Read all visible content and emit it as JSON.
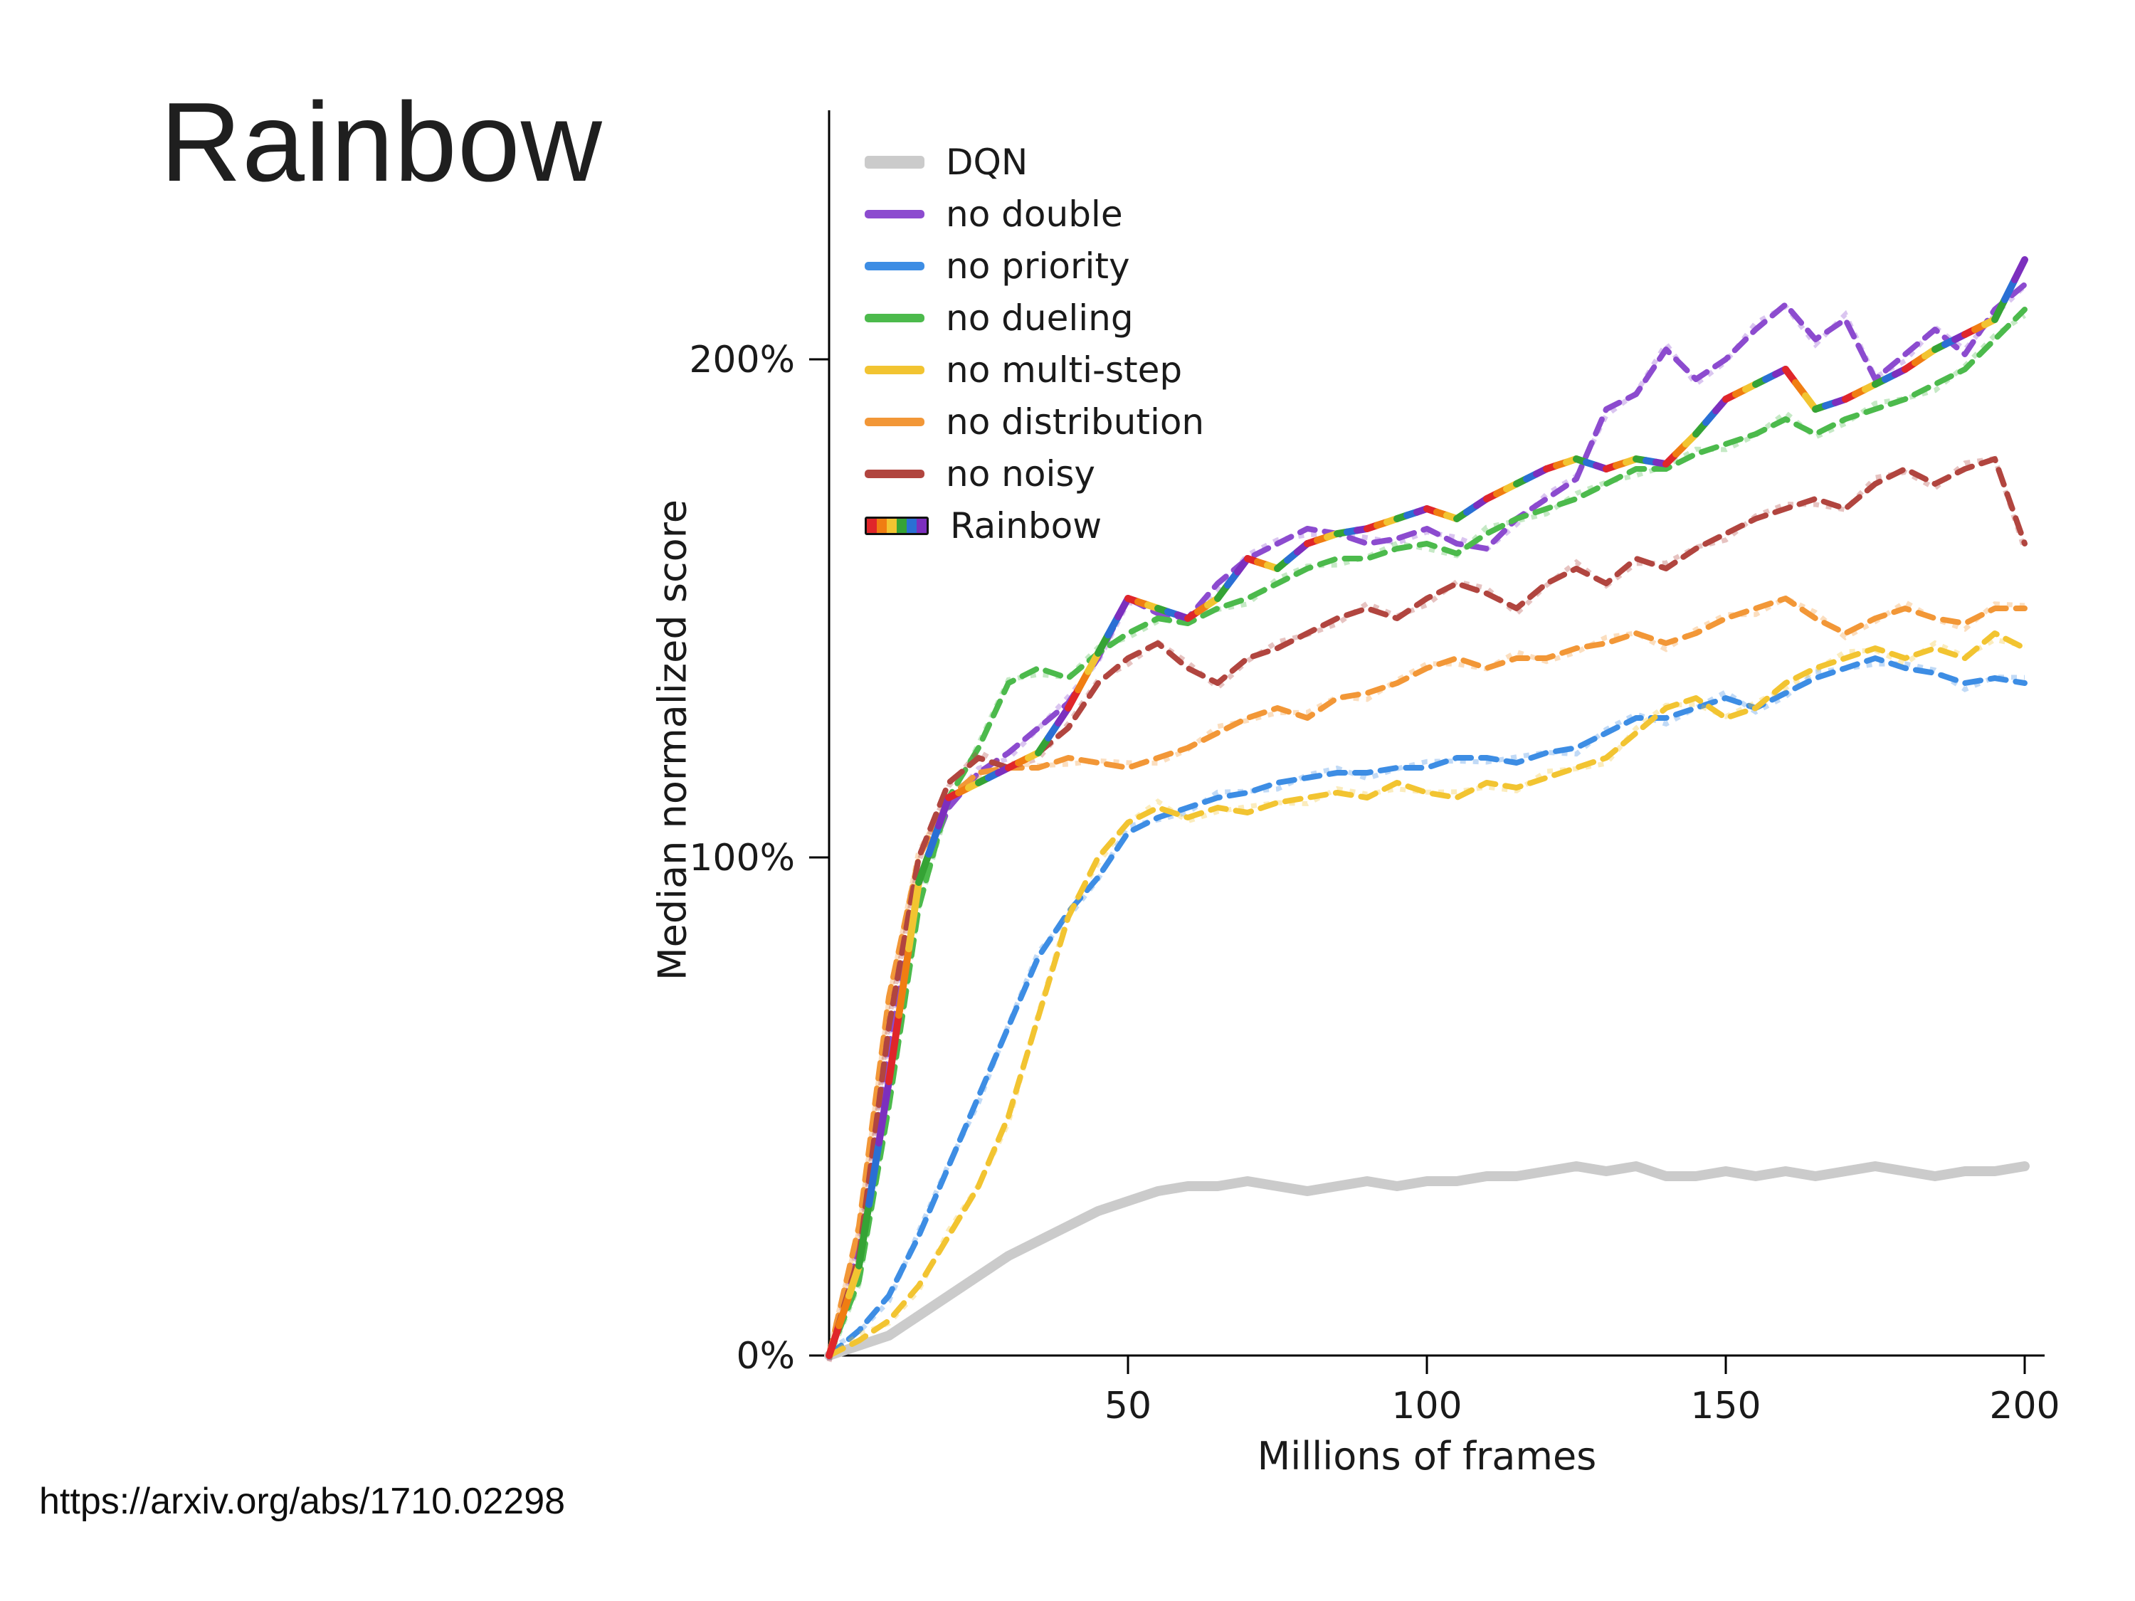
{
  "slide": {
    "title": "Rainbow",
    "url": "https://arxiv.org/abs/1710.02298"
  },
  "chart_data": {
    "type": "line",
    "title": "",
    "xlabel": "Millions of frames",
    "ylabel": "Median normalized score",
    "xlim": [
      0,
      200
    ],
    "ylim": [
      0,
      250
    ],
    "grid": false,
    "legend_position": "upper-left-inside",
    "xticks": [
      50,
      100,
      150,
      200
    ],
    "yticks": [
      {
        "value": 0,
        "label": "0%"
      },
      {
        "value": 100,
        "label": "100%"
      },
      {
        "value": 200,
        "label": "200%"
      }
    ],
    "rainbow_palette": [
      "#e0262a",
      "#f07d12",
      "#f2c431",
      "#35a335",
      "#2a6fd4",
      "#7c2fbe"
    ],
    "x": [
      0,
      5,
      10,
      15,
      20,
      25,
      30,
      35,
      40,
      45,
      50,
      55,
      60,
      65,
      70,
      75,
      80,
      85,
      90,
      95,
      100,
      105,
      110,
      115,
      120,
      125,
      130,
      135,
      140,
      145,
      150,
      155,
      160,
      165,
      170,
      175,
      180,
      185,
      190,
      195,
      200
    ],
    "series": [
      {
        "name": "DQN",
        "color": "#cbcbcb",
        "style": "solid",
        "width": 14,
        "values": [
          0,
          2,
          4,
          8,
          12,
          16,
          20,
          23,
          26,
          29,
          31,
          33,
          34,
          34,
          35,
          34,
          33,
          34,
          35,
          34,
          35,
          35,
          36,
          36,
          37,
          38,
          37,
          38,
          36,
          36,
          37,
          36,
          37,
          36,
          37,
          38,
          37,
          36,
          37,
          37,
          38
        ]
      },
      {
        "name": "no double",
        "color": "#8c4bcf",
        "style": "dashed",
        "width": 8,
        "values": [
          0,
          22,
          62,
          95,
          110,
          117,
          121,
          126,
          131,
          140,
          152,
          149,
          148,
          155,
          160,
          163,
          166,
          165,
          163,
          164,
          166,
          163,
          162,
          168,
          172,
          176,
          190,
          193,
          202,
          196,
          200,
          206,
          211,
          204,
          208,
          196,
          201,
          206,
          201,
          210,
          215
        ]
      },
      {
        "name": "no priority",
        "color": "#3d8de4",
        "style": "dashed",
        "width": 8,
        "values": [
          0,
          5,
          12,
          24,
          38,
          52,
          66,
          80,
          89,
          96,
          105,
          108,
          110,
          112,
          113,
          115,
          116,
          117,
          117,
          118,
          118,
          120,
          120,
          119,
          121,
          122,
          125,
          128,
          128,
          130,
          132,
          130,
          133,
          136,
          138,
          140,
          138,
          137,
          135,
          136,
          135
        ]
      },
      {
        "name": "no dueling",
        "color": "#4cba4c",
        "style": "dashed",
        "width": 8,
        "values": [
          0,
          15,
          50,
          90,
          112,
          122,
          135,
          138,
          136,
          141,
          145,
          148,
          147,
          150,
          152,
          155,
          158,
          160,
          160,
          162,
          163,
          161,
          165,
          168,
          170,
          172,
          175,
          178,
          178,
          181,
          183,
          185,
          188,
          185,
          188,
          190,
          192,
          195,
          198,
          204,
          210
        ]
      },
      {
        "name": "no multi-step",
        "color": "#f2c431",
        "style": "dashed",
        "width": 8,
        "values": [
          0,
          3,
          7,
          14,
          24,
          34,
          48,
          68,
          88,
          100,
          107,
          110,
          108,
          110,
          109,
          111,
          112,
          113,
          112,
          115,
          113,
          112,
          115,
          114,
          116,
          118,
          120,
          125,
          130,
          132,
          128,
          130,
          135,
          138,
          140,
          142,
          140,
          142,
          140,
          145,
          142
        ]
      },
      {
        "name": "no distribution",
        "color": "#f29737",
        "style": "dashed",
        "width": 8,
        "values": [
          0,
          26,
          72,
          100,
          112,
          117,
          118,
          118,
          120,
          119,
          118,
          120,
          122,
          125,
          128,
          130,
          128,
          132,
          133,
          135,
          138,
          140,
          138,
          140,
          140,
          142,
          143,
          145,
          143,
          145,
          148,
          150,
          152,
          148,
          145,
          148,
          150,
          148,
          147,
          150,
          150
        ]
      },
      {
        "name": "no noisy",
        "color": "#b1453f",
        "style": "dashed",
        "width": 8,
        "values": [
          0,
          20,
          66,
          100,
          115,
          120,
          118,
          121,
          126,
          135,
          140,
          143,
          138,
          135,
          140,
          142,
          145,
          148,
          150,
          148,
          152,
          155,
          153,
          150,
          155,
          158,
          155,
          160,
          158,
          162,
          165,
          168,
          170,
          172,
          170,
          175,
          178,
          175,
          178,
          180,
          163
        ]
      },
      {
        "name": "Rainbow",
        "color": "rainbow",
        "style": "solid",
        "width": 10,
        "values": [
          0,
          18,
          55,
          95,
          112,
          115,
          118,
          121,
          130,
          141,
          152,
          150,
          148,
          152,
          160,
          158,
          163,
          165,
          166,
          168,
          170,
          168,
          172,
          175,
          178,
          180,
          178,
          180,
          179,
          185,
          192,
          195,
          198,
          190,
          192,
          195,
          198,
          202,
          205,
          208,
          220
        ]
      }
    ]
  }
}
